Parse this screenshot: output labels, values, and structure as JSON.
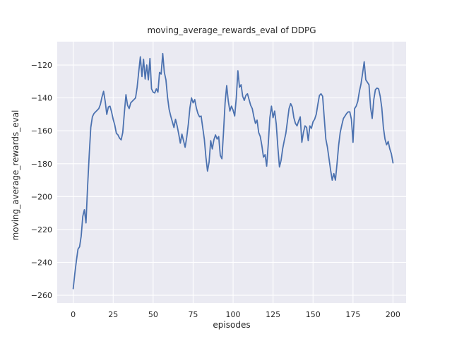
{
  "chart_data": {
    "type": "line",
    "title": "moving_average_rewards_eval of DDPG",
    "xlabel": "episodes",
    "ylabel": "moving_average_rewards_eval",
    "x_ticks": [
      0,
      25,
      50,
      75,
      100,
      125,
      150,
      175,
      200
    ],
    "y_ticks": [
      -120,
      -140,
      -160,
      -180,
      -200,
      -220,
      -240,
      -260
    ],
    "xlim": [
      -10,
      208.2
    ],
    "ylim": [
      -264.7,
      -105.8
    ],
    "grid": true,
    "legend": "none",
    "style": "seaborn-darkgrid",
    "colors": {
      "figure_bg": "#ffffff",
      "axes_bg": "#eaeaf2",
      "grid": "#ffffff",
      "line": "#4c72b0",
      "text": "#262626"
    },
    "series": [
      {
        "name": "moving_average_rewards_eval",
        "x_start": 0,
        "x_step": 1,
        "values": [
          -256,
          -247,
          -239,
          -232,
          -230.5,
          -224,
          -212,
          -208,
          -216,
          -194,
          -175,
          -158,
          -151.5,
          -149.5,
          -148.5,
          -147.5,
          -146.5,
          -144,
          -139.5,
          -136,
          -142,
          -150,
          -145.5,
          -145,
          -148.5,
          -153,
          -156.5,
          -161.5,
          -162.5,
          -164.5,
          -165.5,
          -161,
          -149,
          -138,
          -144.5,
          -146.5,
          -143,
          -142,
          -141,
          -140,
          -133.5,
          -124,
          -115,
          -127,
          -116.5,
          -128.5,
          -120,
          -129,
          -116,
          -134.5,
          -136.5,
          -137,
          -134.5,
          -136.5,
          -124.5,
          -125.5,
          -113,
          -124.5,
          -129,
          -139.5,
          -147,
          -151,
          -154.5,
          -158,
          -153,
          -157,
          -162,
          -167.5,
          -162,
          -166,
          -170,
          -164,
          -156,
          -146,
          -140,
          -143,
          -141,
          -146,
          -149.5,
          -151.5,
          -151,
          -158,
          -165,
          -176,
          -184.5,
          -179,
          -166,
          -171,
          -165.5,
          -162.5,
          -165,
          -163.5,
          -175,
          -177,
          -161,
          -143,
          -132.5,
          -142,
          -148,
          -145,
          -147.5,
          -151,
          -140,
          -123.5,
          -133.5,
          -132,
          -139,
          -141.5,
          -138.5,
          -137.5,
          -141,
          -144.5,
          -146.5,
          -151.5,
          -155.5,
          -153.5,
          -161,
          -163.5,
          -169,
          -176,
          -174.5,
          -181.5,
          -168,
          -152,
          -145,
          -152,
          -148,
          -156,
          -170,
          -182,
          -178,
          -171,
          -166,
          -161.5,
          -154,
          -146.5,
          -143.5,
          -145.5,
          -152,
          -155.5,
          -157,
          -154,
          -151.5,
          -167,
          -161,
          -157,
          -158,
          -166,
          -157,
          -158.5,
          -154.5,
          -153,
          -150,
          -144,
          -138.5,
          -137.5,
          -139,
          -152,
          -165,
          -170,
          -177,
          -184,
          -190,
          -186,
          -190,
          -180,
          -169,
          -161,
          -156.5,
          -152.5,
          -151,
          -149.5,
          -148.5,
          -148.5,
          -153,
          -167,
          -146.5,
          -145,
          -142,
          -136,
          -131.5,
          -125,
          -118,
          -129,
          -130.5,
          -132,
          -146,
          -152.5,
          -141,
          -135,
          -134,
          -134.5,
          -139,
          -146,
          -158,
          -165,
          -168.5,
          -166.5,
          -171,
          -174,
          -179.5
        ]
      }
    ]
  }
}
